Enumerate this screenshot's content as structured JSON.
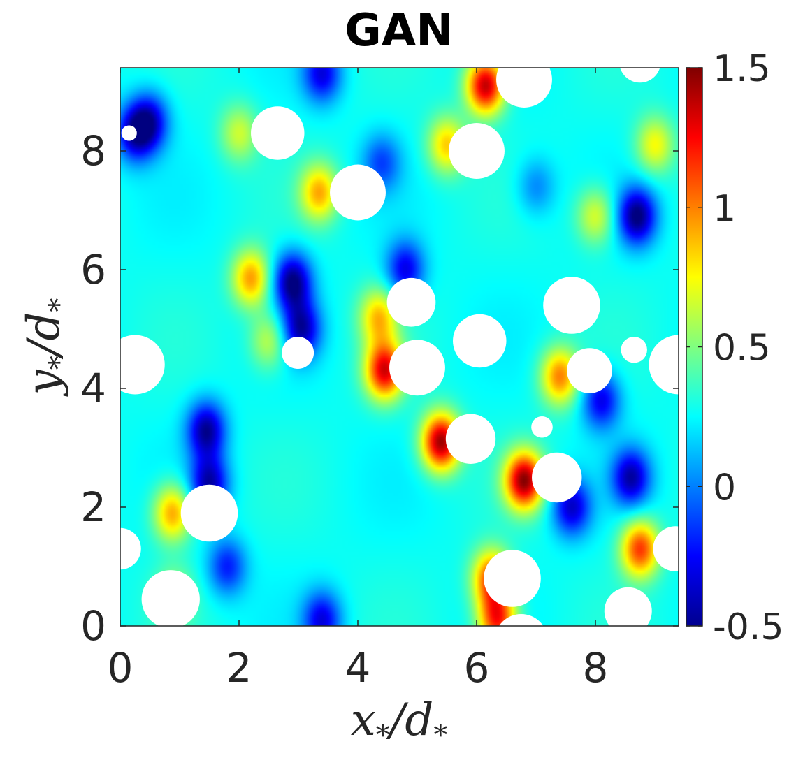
{
  "chart_data": {
    "type": "heatmap",
    "title": "GAN",
    "xlabel": {
      "main": "x",
      "sub": "*",
      "over": "d",
      "over_sub": "*"
    },
    "ylabel": {
      "main": "y",
      "sub": "*",
      "over": "d",
      "over_sub": "*"
    },
    "xlim": [
      0,
      9.4
    ],
    "ylim": [
      0,
      9.4
    ],
    "x_ticks": [
      "0",
      "2",
      "4",
      "6",
      "8"
    ],
    "y_ticks": [
      "0",
      "2",
      "4",
      "6",
      "8"
    ],
    "colormap": "jet",
    "color_range": [
      -0.5,
      1.5
    ],
    "colorbar_ticks": [
      "-0.5",
      "0",
      "0.5",
      "1",
      "1.5"
    ],
    "particles": [
      {
        "x": 0.15,
        "y": 8.3,
        "r": 0.13
      },
      {
        "x": 2.65,
        "y": 8.3,
        "r": 0.45
      },
      {
        "x": 4.0,
        "y": 7.3,
        "r": 0.47
      },
      {
        "x": 6.0,
        "y": 8.0,
        "r": 0.47
      },
      {
        "x": 6.8,
        "y": 9.2,
        "r": 0.47
      },
      {
        "x": 8.75,
        "y": 9.5,
        "r": 0.35
      },
      {
        "x": 4.9,
        "y": 5.45,
        "r": 0.41
      },
      {
        "x": 7.6,
        "y": 5.4,
        "r": 0.48
      },
      {
        "x": 6.05,
        "y": 4.8,
        "r": 0.45
      },
      {
        "x": 2.99,
        "y": 4.6,
        "r": 0.27
      },
      {
        "x": 0.25,
        "y": 4.4,
        "r": 0.5
      },
      {
        "x": 5.0,
        "y": 4.35,
        "r": 0.47
      },
      {
        "x": 7.9,
        "y": 4.3,
        "r": 0.38
      },
      {
        "x": 8.65,
        "y": 4.65,
        "r": 0.22
      },
      {
        "x": 9.4,
        "y": 4.4,
        "r": 0.5
      },
      {
        "x": 7.1,
        "y": 3.35,
        "r": 0.18
      },
      {
        "x": 5.9,
        "y": 3.15,
        "r": 0.42
      },
      {
        "x": 7.35,
        "y": 2.5,
        "r": 0.42
      },
      {
        "x": 1.5,
        "y": 1.9,
        "r": 0.48
      },
      {
        "x": 0.0,
        "y": 1.3,
        "r": 0.35
      },
      {
        "x": 9.35,
        "y": 1.3,
        "r": 0.38
      },
      {
        "x": 6.6,
        "y": 0.8,
        "r": 0.48
      },
      {
        "x": 0.85,
        "y": 0.45,
        "r": 0.49
      },
      {
        "x": 8.55,
        "y": 0.25,
        "r": 0.4
      },
      {
        "x": 6.75,
        "y": -0.25,
        "r": 0.45
      }
    ],
    "field_features": [
      {
        "x": 6.15,
        "y": 9.1,
        "v": 1.4
      },
      {
        "x": 5.4,
        "y": 3.1,
        "v": 1.45
      },
      {
        "x": 6.8,
        "y": 2.45,
        "v": 1.45
      },
      {
        "x": 4.45,
        "y": 4.3,
        "v": 1.3
      },
      {
        "x": 4.35,
        "y": 5.2,
        "v": 0.85
      },
      {
        "x": 6.25,
        "y": 0.8,
        "v": 1.15
      },
      {
        "x": 6.35,
        "y": 0.1,
        "v": 1.2
      },
      {
        "x": 8.75,
        "y": 1.3,
        "v": 1.15
      },
      {
        "x": 2.2,
        "y": 5.85,
        "v": 0.95
      },
      {
        "x": 0.88,
        "y": 1.9,
        "v": 0.95
      },
      {
        "x": 5.5,
        "y": 8.1,
        "v": 0.85
      },
      {
        "x": 3.35,
        "y": 7.3,
        "v": 0.9
      },
      {
        "x": 7.4,
        "y": 4.2,
        "v": 1.0
      },
      {
        "x": 8.0,
        "y": 6.9,
        "v": 0.7
      },
      {
        "x": 9.0,
        "y": 8.1,
        "v": 0.75
      },
      {
        "x": 2.0,
        "y": 8.3,
        "v": 0.65
      },
      {
        "x": 2.5,
        "y": 4.8,
        "v": 0.65
      },
      {
        "x": 0.9,
        "y": 0.5,
        "v": 0.6
      },
      {
        "x": 2.9,
        "y": 5.8,
        "v": -0.5
      },
      {
        "x": 3.05,
        "y": 5.0,
        "v": -0.4
      },
      {
        "x": 1.45,
        "y": 3.3,
        "v": -0.45
      },
      {
        "x": 1.5,
        "y": 2.4,
        "v": -0.4
      },
      {
        "x": 8.7,
        "y": 6.9,
        "v": -0.5
      },
      {
        "x": 8.6,
        "y": 2.5,
        "v": -0.4
      },
      {
        "x": 7.6,
        "y": 2.0,
        "v": -0.35
      },
      {
        "x": 0.25,
        "y": 8.3,
        "v": -0.35
      },
      {
        "x": 0.5,
        "y": 8.5,
        "v": -0.3
      },
      {
        "x": 8.1,
        "y": 3.8,
        "v": -0.3
      },
      {
        "x": 4.8,
        "y": 6.0,
        "v": -0.3
      },
      {
        "x": 3.4,
        "y": 9.3,
        "v": -0.3
      },
      {
        "x": 1.8,
        "y": 1.0,
        "v": -0.2
      },
      {
        "x": 3.4,
        "y": 0.1,
        "v": -0.3
      },
      {
        "x": 7.0,
        "y": 7.4,
        "v": 0.0
      },
      {
        "x": 4.4,
        "y": 7.8,
        "v": -0.1
      }
    ],
    "field_base": 0.27,
    "grid": false
  }
}
